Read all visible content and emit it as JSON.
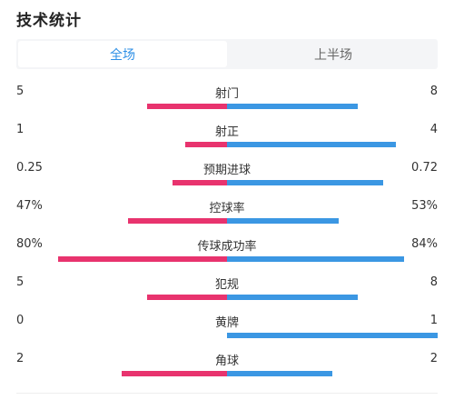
{
  "title": "技术统计",
  "tabs": [
    {
      "label": "全场",
      "active": true
    },
    {
      "label": "上半场",
      "active": false
    }
  ],
  "colors": {
    "home": "#e8336e",
    "away": "#3b97e3",
    "active_tab": "#2e8fe6"
  },
  "stats": [
    {
      "label": "射门",
      "home": "5",
      "away": "8",
      "home_frac": 0.38,
      "away_frac": 0.62
    },
    {
      "label": "射正",
      "home": "1",
      "away": "4",
      "home_frac": 0.2,
      "away_frac": 0.8
    },
    {
      "label": "预期进球",
      "home": "0.25",
      "away": "0.72",
      "home_frac": 0.26,
      "away_frac": 0.74
    },
    {
      "label": "控球率",
      "home": "47%",
      "away": "53%",
      "home_frac": 0.47,
      "away_frac": 0.53
    },
    {
      "label": "传球成功率",
      "home": "80%",
      "away": "84%",
      "home_frac": 0.8,
      "away_frac": 0.84
    },
    {
      "label": "犯规",
      "home": "5",
      "away": "8",
      "home_frac": 0.38,
      "away_frac": 0.62
    },
    {
      "label": "黄牌",
      "home": "0",
      "away": "1",
      "home_frac": 0.0,
      "away_frac": 1.0
    },
    {
      "label": "角球",
      "home": "2",
      "away": "2",
      "home_frac": 0.5,
      "away_frac": 0.5
    }
  ]
}
